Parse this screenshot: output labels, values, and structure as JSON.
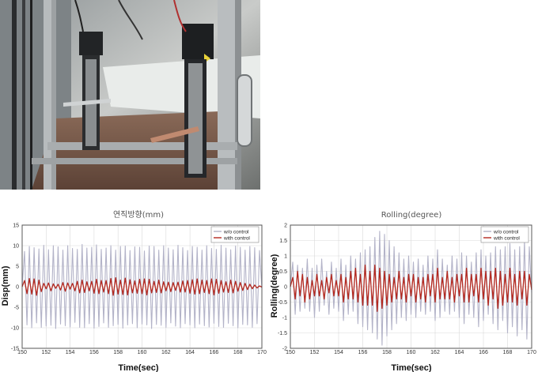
{
  "photo": {
    "alt_icon": "test-rig-photo"
  },
  "chart_data": [
    {
      "type": "line",
      "title": "연직방향(mm)",
      "xlabel": "Time(sec)",
      "ylabel": "Disp(mm)",
      "xlim": [
        150,
        170
      ],
      "ylim": [
        -15,
        15
      ],
      "xticks": [
        150,
        152,
        154,
        156,
        158,
        160,
        162,
        164,
        166,
        168,
        170
      ],
      "yticks": [
        -15,
        -10,
        -5,
        0,
        5,
        10,
        15
      ],
      "grid": true,
      "legend_position": "top-right",
      "series": [
        {
          "name": "w/o control",
          "color": "#b3b3c8",
          "x": [
            150.0,
            150.2,
            150.4,
            150.6,
            150.8,
            151.0,
            151.2,
            151.4,
            151.6,
            151.8,
            152.0,
            152.2,
            152.4,
            152.6,
            152.8,
            153.0,
            153.2,
            153.4,
            153.6,
            153.8,
            154.0,
            154.2,
            154.4,
            154.6,
            154.8,
            155.0,
            155.2,
            155.4,
            155.6,
            155.8,
            156.0,
            156.2,
            156.4,
            156.6,
            156.8,
            157.0,
            157.2,
            157.4,
            157.6,
            157.8,
            158.0,
            158.2,
            158.4,
            158.6,
            158.8,
            159.0,
            159.2,
            159.4,
            159.6,
            159.8,
            160.0,
            160.2,
            160.4,
            160.6,
            160.8,
            161.0,
            161.2,
            161.4,
            161.6,
            161.8,
            162.0,
            162.2,
            162.4,
            162.6,
            162.8,
            163.0,
            163.2,
            163.4,
            163.6,
            163.8,
            164.0,
            164.2,
            164.4,
            164.6,
            164.8,
            165.0,
            165.2,
            165.4,
            165.6,
            165.8,
            166.0,
            166.2,
            166.4,
            166.6,
            166.8,
            167.0,
            167.2,
            167.4,
            167.6,
            167.8,
            168.0,
            168.2,
            168.4,
            168.6,
            168.8,
            169.0,
            169.2,
            169.4,
            169.6,
            169.8,
            170.0
          ],
          "y": [
            0.0,
            8.6,
            -9.3,
            9.8,
            -10.0,
            9.5,
            -8.8,
            9.2,
            -9.9,
            10.1,
            -9.6,
            9.0,
            -9.4,
            10.0,
            -10.2,
            9.7,
            -9.1,
            8.9,
            -9.5,
            10.0,
            -9.8,
            9.3,
            -8.7,
            9.1,
            -9.9,
            10.3,
            -10.0,
            9.4,
            -9.0,
            9.6,
            -10.1,
            10.2,
            -9.7,
            9.1,
            -8.8,
            9.4,
            -9.9,
            10.0,
            -9.5,
            8.9,
            -9.2,
            9.8,
            -10.1,
            9.9,
            -9.3,
            8.8,
            -9.0,
            9.7,
            -10.0,
            9.6,
            -9.1,
            8.7,
            -9.3,
            9.9,
            -10.2,
            9.8,
            -9.2,
            8.9,
            -9.4,
            10.0,
            -9.9,
            9.4,
            -8.8,
            9.0,
            -9.6,
            10.1,
            -10.0,
            9.5,
            -9.0,
            8.8,
            -9.3,
            9.8,
            -10.0,
            9.6,
            -9.1,
            8.9,
            -9.5,
            10.0,
            -9.8,
            9.3,
            -8.9,
            9.1,
            -9.7,
            10.1,
            -9.9,
            9.4,
            -8.9,
            9.0,
            -9.5,
            9.9,
            -10.0,
            9.6,
            -9.2,
            8.9,
            -9.3,
            9.8,
            -9.9,
            9.5,
            -9.0,
            8.8,
            -0.5
          ]
        },
        {
          "name": "with control",
          "color": "#b5281e",
          "x": [
            150.0,
            150.2,
            150.4,
            150.6,
            150.8,
            151.0,
            151.2,
            151.4,
            151.6,
            151.8,
            152.0,
            152.2,
            152.4,
            152.6,
            152.8,
            153.0,
            153.2,
            153.4,
            153.6,
            153.8,
            154.0,
            154.2,
            154.4,
            154.6,
            154.8,
            155.0,
            155.2,
            155.4,
            155.6,
            155.8,
            156.0,
            156.2,
            156.4,
            156.6,
            156.8,
            157.0,
            157.2,
            157.4,
            157.6,
            157.8,
            158.0,
            158.2,
            158.4,
            158.6,
            158.8,
            159.0,
            159.2,
            159.4,
            159.6,
            159.8,
            160.0,
            160.2,
            160.4,
            160.6,
            160.8,
            161.0,
            161.2,
            161.4,
            161.6,
            161.8,
            162.0,
            162.2,
            162.4,
            162.6,
            162.8,
            163.0,
            163.2,
            163.4,
            163.6,
            163.8,
            164.0,
            164.2,
            164.4,
            164.6,
            164.8,
            165.0,
            165.2,
            165.4,
            165.6,
            165.8,
            166.0,
            166.2,
            166.4,
            166.6,
            166.8,
            167.0,
            167.2,
            167.4,
            167.6,
            167.8,
            168.0,
            168.2,
            168.4,
            168.6,
            168.8,
            169.0,
            169.2,
            169.4,
            169.6,
            169.8,
            170.0
          ],
          "y": [
            0.0,
            1.5,
            -1.7,
            2.0,
            -1.8,
            1.9,
            -2.1,
            1.6,
            -1.2,
            0.8,
            -0.5,
            0.9,
            -1.0,
            0.7,
            -0.4,
            0.6,
            -0.8,
            1.0,
            -1.1,
            0.9,
            -0.6,
            0.8,
            -1.0,
            1.3,
            -1.5,
            1.6,
            -1.4,
            1.2,
            -1.0,
            1.3,
            -1.6,
            1.8,
            -1.7,
            1.5,
            -1.3,
            1.5,
            -1.7,
            2.0,
            -2.1,
            2.2,
            -1.8,
            1.6,
            -1.9,
            2.1,
            -2.0,
            1.7,
            -1.5,
            1.4,
            -1.6,
            1.8,
            -1.7,
            1.9,
            -2.0,
            1.8,
            -1.5,
            1.3,
            -1.4,
            1.6,
            -1.5,
            1.2,
            -1.0,
            1.1,
            -1.2,
            1.0,
            -0.9,
            1.1,
            -1.3,
            1.4,
            -1.3,
            1.5,
            -1.6,
            1.7,
            -1.8,
            1.9,
            -1.7,
            1.6,
            -1.4,
            1.5,
            -1.7,
            1.9,
            -2.0,
            1.8,
            -1.6,
            1.5,
            -1.3,
            1.2,
            -1.4,
            1.6,
            -1.5,
            1.3,
            -1.1,
            1.0,
            -0.9,
            0.8,
            -0.7,
            0.6,
            -0.5,
            0.4,
            -0.3,
            0.2,
            -0.1
          ]
        }
      ]
    },
    {
      "type": "line",
      "title": "Rolling(degree)",
      "xlabel": "Time(sec)",
      "ylabel": "Rolling(degree)",
      "xlim": [
        150,
        170
      ],
      "ylim": [
        -2,
        2
      ],
      "xticks": [
        150,
        152,
        154,
        156,
        158,
        160,
        162,
        164,
        166,
        168,
        170
      ],
      "yticks": [
        -2,
        -1.5,
        -1,
        -0.5,
        0,
        0.5,
        1,
        1.5,
        2
      ],
      "grid": true,
      "legend_position": "top-right",
      "series": [
        {
          "name": "w/o control",
          "color": "#b3b3c8",
          "x": [
            150.0,
            150.2,
            150.4,
            150.6,
            150.8,
            151.0,
            151.2,
            151.4,
            151.6,
            151.8,
            152.0,
            152.2,
            152.4,
            152.6,
            152.8,
            153.0,
            153.2,
            153.4,
            153.6,
            153.8,
            154.0,
            154.2,
            154.4,
            154.6,
            154.8,
            155.0,
            155.2,
            155.4,
            155.6,
            155.8,
            156.0,
            156.2,
            156.4,
            156.6,
            156.8,
            157.0,
            157.2,
            157.4,
            157.6,
            157.8,
            158.0,
            158.2,
            158.4,
            158.6,
            158.8,
            159.0,
            159.2,
            159.4,
            159.6,
            159.8,
            160.0,
            160.2,
            160.4,
            160.6,
            160.8,
            161.0,
            161.2,
            161.4,
            161.6,
            161.8,
            162.0,
            162.2,
            162.4,
            162.6,
            162.8,
            163.0,
            163.2,
            163.4,
            163.6,
            163.8,
            164.0,
            164.2,
            164.4,
            164.6,
            164.8,
            165.0,
            165.2,
            165.4,
            165.6,
            165.8,
            166.0,
            166.2,
            166.4,
            166.6,
            166.8,
            167.0,
            167.2,
            167.4,
            167.6,
            167.8,
            168.0,
            168.2,
            168.4,
            168.6,
            168.8,
            169.0,
            169.2,
            169.4,
            169.6,
            169.8,
            170.0
          ],
          "y": [
            0.0,
            0.8,
            -0.9,
            0.7,
            -0.8,
            0.6,
            -0.7,
            0.9,
            -0.8,
            0.6,
            -1.0,
            0.7,
            -0.8,
            0.9,
            -0.6,
            0.5,
            -0.9,
            0.8,
            -0.7,
            0.6,
            -0.8,
            0.9,
            -1.1,
            0.7,
            -0.9,
            1.0,
            -0.8,
            0.9,
            -1.2,
            1.1,
            -1.3,
            1.2,
            -1.4,
            1.3,
            -1.5,
            1.6,
            -1.7,
            1.8,
            -1.9,
            1.7,
            -1.6,
            1.5,
            -1.4,
            1.3,
            -1.2,
            1.1,
            -1.0,
            0.9,
            -1.1,
            1.0,
            -0.9,
            0.8,
            -1.0,
            0.9,
            -0.8,
            0.7,
            -0.9,
            1.0,
            -0.8,
            0.9,
            -1.1,
            1.2,
            -1.0,
            0.9,
            -0.8,
            0.7,
            -0.9,
            1.0,
            -0.8,
            0.9,
            -1.0,
            1.1,
            -1.2,
            1.0,
            -0.9,
            0.8,
            -1.0,
            1.1,
            -1.3,
            1.2,
            -1.1,
            1.0,
            -0.9,
            1.1,
            -1.2,
            1.3,
            -1.4,
            1.2,
            -1.1,
            1.3,
            -1.5,
            1.4,
            -1.3,
            1.2,
            -1.6,
            1.3,
            -1.4,
            1.5,
            -1.7,
            1.3,
            -0.2
          ]
        },
        {
          "name": "with control",
          "color": "#b5281e",
          "x": [
            150.0,
            150.2,
            150.4,
            150.6,
            150.8,
            151.0,
            151.2,
            151.4,
            151.6,
            151.8,
            152.0,
            152.2,
            152.4,
            152.6,
            152.8,
            153.0,
            153.2,
            153.4,
            153.6,
            153.8,
            154.0,
            154.2,
            154.4,
            154.6,
            154.8,
            155.0,
            155.2,
            155.4,
            155.6,
            155.8,
            156.0,
            156.2,
            156.4,
            156.6,
            156.8,
            157.0,
            157.2,
            157.4,
            157.6,
            157.8,
            158.0,
            158.2,
            158.4,
            158.6,
            158.8,
            159.0,
            159.2,
            159.4,
            159.6,
            159.8,
            160.0,
            160.2,
            160.4,
            160.6,
            160.8,
            161.0,
            161.2,
            161.4,
            161.6,
            161.8,
            162.0,
            162.2,
            162.4,
            162.6,
            162.8,
            163.0,
            163.2,
            163.4,
            163.6,
            163.8,
            164.0,
            164.2,
            164.4,
            164.6,
            164.8,
            165.0,
            165.2,
            165.4,
            165.6,
            165.8,
            166.0,
            166.2,
            166.4,
            166.6,
            166.8,
            167.0,
            167.2,
            167.4,
            167.6,
            167.8,
            168.0,
            168.2,
            168.4,
            168.6,
            168.8,
            169.0,
            169.2,
            169.4,
            169.6,
            169.8,
            170.0
          ],
          "y": [
            0.0,
            0.3,
            -0.4,
            0.5,
            -0.3,
            0.4,
            -0.5,
            0.3,
            -0.4,
            0.2,
            -0.3,
            0.4,
            -0.3,
            0.2,
            -0.4,
            0.3,
            -0.2,
            0.4,
            -0.3,
            0.2,
            -0.3,
            0.4,
            -0.5,
            0.3,
            -0.4,
            0.5,
            -0.4,
            0.6,
            -0.5,
            0.4,
            -0.6,
            0.7,
            -0.6,
            0.5,
            -0.6,
            0.7,
            -0.8,
            0.6,
            -0.7,
            0.5,
            -0.6,
            0.4,
            -0.5,
            0.3,
            -0.4,
            0.5,
            -0.4,
            0.3,
            -0.5,
            0.4,
            -0.3,
            0.4,
            -0.5,
            0.3,
            -0.4,
            0.3,
            -0.5,
            0.4,
            -0.3,
            0.4,
            -0.5,
            0.6,
            -0.4,
            0.3,
            -0.4,
            0.5,
            -0.4,
            0.3,
            -0.5,
            0.4,
            -0.3,
            0.4,
            -0.5,
            0.6,
            -0.5,
            0.4,
            -0.3,
            0.4,
            -0.5,
            0.6,
            -0.4,
            0.5,
            -0.6,
            0.5,
            -0.4,
            0.6,
            -0.7,
            0.5,
            -0.6,
            0.4,
            -0.5,
            0.6,
            -0.5,
            0.4,
            -0.6,
            0.5,
            -0.4,
            0.5,
            -0.6,
            0.4,
            -0.1
          ]
        }
      ]
    }
  ]
}
